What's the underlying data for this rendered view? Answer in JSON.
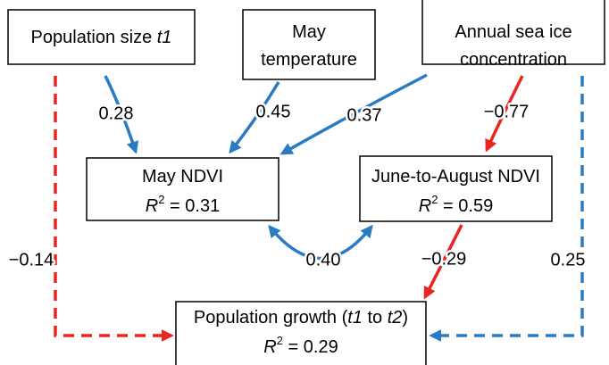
{
  "nodes": [
    {
      "lines": [
        [
          {
            "t": "Population size "
          },
          {
            "t": "t1",
            "italic": true
          }
        ]
      ]
    },
    {
      "lines": [
        [
          {
            "t": "May"
          }
        ],
        [
          {
            "t": "temperature"
          }
        ]
      ]
    },
    {
      "lines": [
        [
          {
            "t": "Annual sea ice"
          }
        ],
        [
          {
            "t": "concentration"
          }
        ]
      ]
    },
    {
      "lines": [
        [
          {
            "t": "May NDVI"
          }
        ],
        [
          {
            "t": "R",
            "italic": true
          },
          {
            "t": "2",
            "sup": true
          },
          {
            "t": " = 0.31"
          }
        ]
      ]
    },
    {
      "lines": [
        [
          {
            "t": "June-to-August NDVI"
          }
        ],
        [
          {
            "t": "R",
            "italic": true
          },
          {
            "t": "2",
            "sup": true
          },
          {
            "t": " = 0.59"
          }
        ]
      ]
    },
    {
      "lines": [
        [
          {
            "t": "Population growth ("
          },
          {
            "t": "t1",
            "italic": true
          },
          {
            "t": " to "
          },
          {
            "t": "t2",
            "italic": true
          },
          {
            "t": ")"
          }
        ],
        [
          {
            "t": "R",
            "italic": true
          },
          {
            "t": "2",
            "sup": true
          },
          {
            "t": " = 0.29"
          }
        ]
      ]
    }
  ],
  "edges": [
    {
      "label": "0.28",
      "color": "#2a7bc2",
      "dashed": false,
      "double_headed": false
    },
    {
      "label": "0.45",
      "color": "#2a7bc2",
      "dashed": false,
      "double_headed": false
    },
    {
      "label": "0.37",
      "color": "#2a7bc2",
      "dashed": false,
      "double_headed": false
    },
    {
      "label": "−0.77",
      "color": "#e8261f",
      "dashed": false,
      "double_headed": false
    },
    {
      "label": "0.40",
      "color": "#2a7bc2",
      "dashed": false,
      "double_headed": true
    },
    {
      "label": "−0.29",
      "color": "#e8261f",
      "dashed": false,
      "double_headed": false
    },
    {
      "label": "−0.14",
      "color": "#e8261f",
      "dashed": true,
      "double_headed": false
    },
    {
      "label": "0.25",
      "color": "#2a7bc2",
      "dashed": true,
      "double_headed": false
    }
  ]
}
